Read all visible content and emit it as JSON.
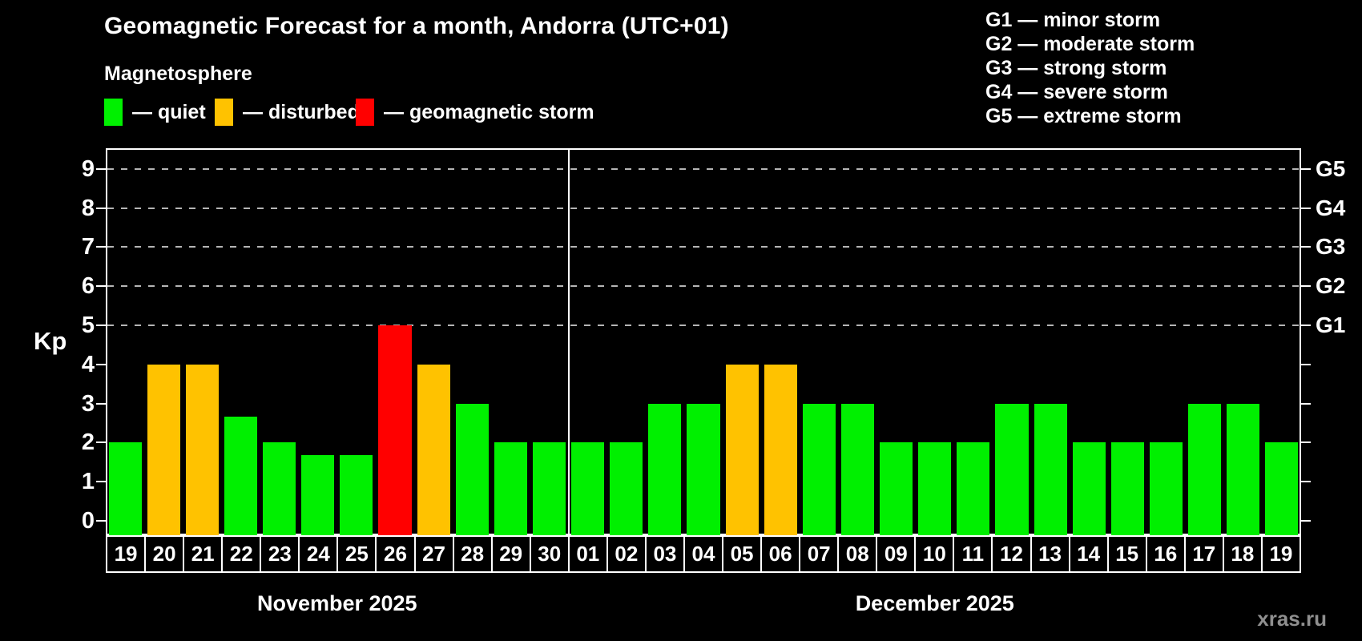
{
  "title": "Geomagnetic Forecast for a month, Andorra (UTC+01)",
  "subtitle": "Magnetosphere",
  "legend": {
    "items": [
      {
        "label": "— quiet",
        "color": "#00f000"
      },
      {
        "label": "— disturbed",
        "color": "#ffc200"
      },
      {
        "label": "— geomagnetic storm",
        "color": "#ff0000"
      }
    ]
  },
  "g_legend": {
    "items": [
      "G1 — minor storm",
      "G2 — moderate storm",
      "G3 — strong storm",
      "G4 — severe storm",
      "G5 — extreme storm"
    ]
  },
  "watermark": "xras.ru",
  "chart_data": {
    "type": "bar",
    "ylabel": "Kp",
    "ylim": [
      -0.37,
      9.6
    ],
    "yticks": [
      0,
      1,
      2,
      3,
      4,
      5,
      6,
      7,
      8,
      9
    ],
    "grid_kp": [
      5,
      6,
      7,
      8,
      9
    ],
    "right_labels": [
      {
        "kp": 5,
        "label": "G1"
      },
      {
        "kp": 6,
        "label": "G2"
      },
      {
        "kp": 7,
        "label": "G3"
      },
      {
        "kp": 8,
        "label": "G4"
      },
      {
        "kp": 9,
        "label": "G5"
      }
    ],
    "colors": {
      "quiet": "#00f000",
      "disturbed": "#ffc200",
      "storm": "#ff0000"
    },
    "groups": [
      {
        "label": "November 2025",
        "days": [
          {
            "day": "19",
            "kp": 2,
            "status": "quiet"
          },
          {
            "day": "20",
            "kp": 4,
            "status": "disturbed"
          },
          {
            "day": "21",
            "kp": 4,
            "status": "disturbed"
          },
          {
            "day": "22",
            "kp": 2.67,
            "status": "quiet"
          },
          {
            "day": "23",
            "kp": 2,
            "status": "quiet"
          },
          {
            "day": "24",
            "kp": 1.67,
            "status": "quiet"
          },
          {
            "day": "25",
            "kp": 1.67,
            "status": "quiet"
          },
          {
            "day": "26",
            "kp": 5,
            "status": "storm"
          },
          {
            "day": "27",
            "kp": 4,
            "status": "disturbed"
          },
          {
            "day": "28",
            "kp": 3,
            "status": "quiet"
          },
          {
            "day": "29",
            "kp": 2,
            "status": "quiet"
          },
          {
            "day": "30",
            "kp": 2,
            "status": "quiet"
          }
        ]
      },
      {
        "label": "December 2025",
        "days": [
          {
            "day": "01",
            "kp": 2,
            "status": "quiet"
          },
          {
            "day": "02",
            "kp": 2,
            "status": "quiet"
          },
          {
            "day": "03",
            "kp": 3,
            "status": "quiet"
          },
          {
            "day": "04",
            "kp": 3,
            "status": "quiet"
          },
          {
            "day": "05",
            "kp": 4,
            "status": "disturbed"
          },
          {
            "day": "06",
            "kp": 4,
            "status": "disturbed"
          },
          {
            "day": "07",
            "kp": 3,
            "status": "quiet"
          },
          {
            "day": "08",
            "kp": 3,
            "status": "quiet"
          },
          {
            "day": "09",
            "kp": 2,
            "status": "quiet"
          },
          {
            "day": "10",
            "kp": 2,
            "status": "quiet"
          },
          {
            "day": "11",
            "kp": 2,
            "status": "quiet"
          },
          {
            "day": "12",
            "kp": 3,
            "status": "quiet"
          },
          {
            "day": "13",
            "kp": 3,
            "status": "quiet"
          },
          {
            "day": "14",
            "kp": 2,
            "status": "quiet"
          },
          {
            "day": "15",
            "kp": 2,
            "status": "quiet"
          },
          {
            "day": "16",
            "kp": 2,
            "status": "quiet"
          },
          {
            "day": "17",
            "kp": 3,
            "status": "quiet"
          },
          {
            "day": "18",
            "kp": 3,
            "status": "quiet"
          },
          {
            "day": "19",
            "kp": 2,
            "status": "quiet"
          }
        ]
      }
    ]
  }
}
